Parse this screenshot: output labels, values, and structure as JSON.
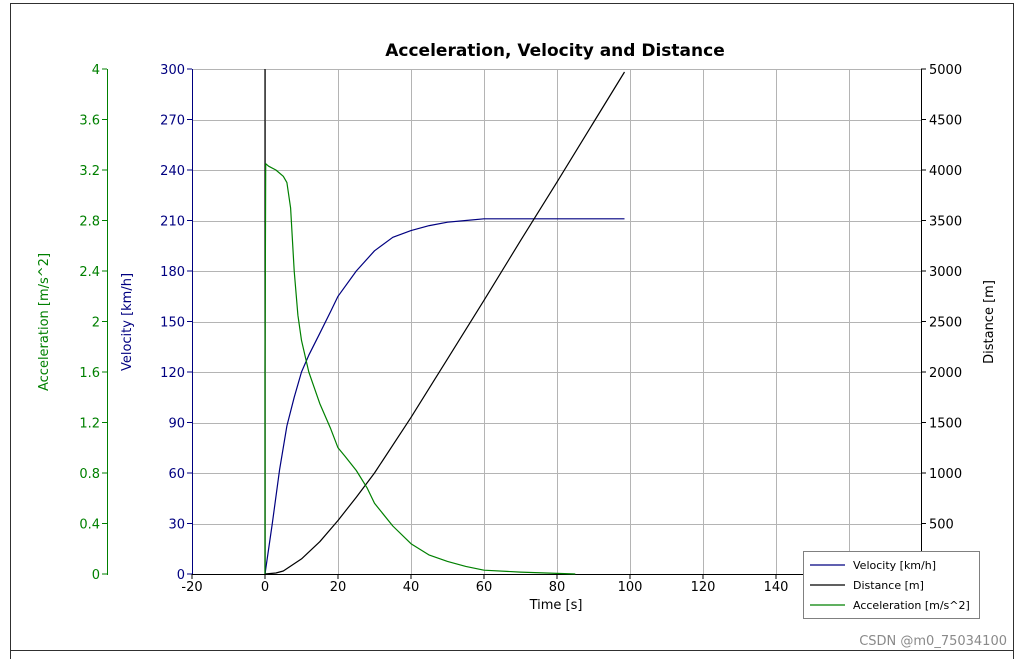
{
  "watermark": "CSDN @m0_75034100",
  "chart_data": {
    "type": "line",
    "title": "Acceleration, Velocity and Distance",
    "xlabel": "Time [s]",
    "xlim": [
      -20,
      180
    ],
    "x_ticks": [
      "-20",
      "0",
      "20",
      "40",
      "60",
      "80",
      "100",
      "120",
      "140"
    ],
    "grid": true,
    "legend_position": "bottom-right",
    "axes": {
      "velocity": {
        "label": "Velocity [km/h]",
        "range": [
          0,
          300
        ],
        "color": "#000080",
        "ticks": [
          "0",
          "30",
          "60",
          "90",
          "120",
          "150",
          "180",
          "210",
          "240",
          "270",
          "300"
        ]
      },
      "acceleration": {
        "label": "Acceleration [m/s^2]",
        "range": [
          0,
          4
        ],
        "color": "#008000",
        "ticks": [
          "0",
          "0.4",
          "0.8",
          "1.2",
          "1.6",
          "2",
          "2.4",
          "2.8",
          "3.2",
          "3.6",
          "4"
        ]
      },
      "distance": {
        "label": "Distance [m]",
        "range": [
          0,
          5000
        ],
        "color": "#000000",
        "ticks": [
          "",
          "500",
          "1000",
          "1500",
          "2000",
          "2500",
          "3000",
          "3500",
          "4000",
          "4500",
          "5000"
        ]
      }
    },
    "series": [
      {
        "name": "Velocity [km/h]",
        "axis": "velocity",
        "color": "#000080",
        "points": [
          [
            0,
            0
          ],
          [
            2,
            30
          ],
          [
            4,
            62
          ],
          [
            6,
            88
          ],
          [
            8,
            105
          ],
          [
            10,
            120
          ],
          [
            12,
            130
          ],
          [
            15,
            143
          ],
          [
            18,
            156
          ],
          [
            20,
            165
          ],
          [
            25,
            180
          ],
          [
            30,
            192
          ],
          [
            35,
            200
          ],
          [
            40,
            204
          ],
          [
            45,
            207
          ],
          [
            50,
            209
          ],
          [
            55,
            210
          ],
          [
            60,
            211
          ],
          [
            70,
            211
          ],
          [
            80,
            211
          ],
          [
            90,
            211
          ],
          [
            98.5,
            211
          ]
        ]
      },
      {
        "name": "Distance [m]",
        "axis": "distance",
        "color": "#000000",
        "points": [
          [
            0,
            0
          ],
          [
            3,
            10
          ],
          [
            5,
            30
          ],
          [
            10,
            150
          ],
          [
            15,
            320
          ],
          [
            20,
            530
          ],
          [
            25,
            760
          ],
          [
            30,
            1000
          ],
          [
            40,
            1550
          ],
          [
            50,
            2130
          ],
          [
            60,
            2710
          ],
          [
            70,
            3300
          ],
          [
            80,
            3880
          ],
          [
            90,
            4470
          ],
          [
            98.5,
            4970
          ]
        ],
        "spike": {
          "x": 0,
          "range": [
            0,
            5000
          ]
        }
      },
      {
        "name": "Acceleration [m/s^2]",
        "axis": "acceleration",
        "color": "#008000",
        "points": [
          [
            0,
            0
          ],
          [
            0,
            1.6
          ],
          [
            0.2,
            3.25
          ],
          [
            1,
            3.23
          ],
          [
            3,
            3.2
          ],
          [
            5,
            3.15
          ],
          [
            6,
            3.1
          ],
          [
            7,
            2.9
          ],
          [
            8,
            2.4
          ],
          [
            9,
            2.05
          ],
          [
            10,
            1.85
          ],
          [
            12,
            1.6
          ],
          [
            15,
            1.35
          ],
          [
            18,
            1.15
          ],
          [
            20,
            1.0
          ],
          [
            22,
            0.93
          ],
          [
            25,
            0.82
          ],
          [
            28,
            0.68
          ],
          [
            30,
            0.56
          ],
          [
            35,
            0.38
          ],
          [
            40,
            0.24
          ],
          [
            45,
            0.15
          ],
          [
            50,
            0.1
          ],
          [
            55,
            0.06
          ],
          [
            60,
            0.03
          ],
          [
            70,
            0.015
          ],
          [
            85,
            0.0
          ]
        ]
      }
    ]
  }
}
